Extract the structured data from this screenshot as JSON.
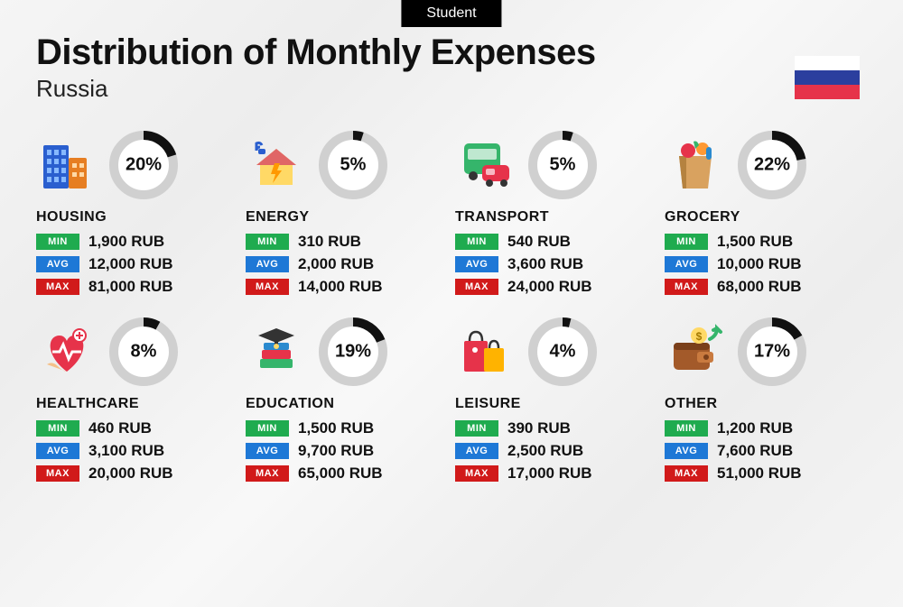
{
  "header_badge": "Student",
  "title": "Distribution of Monthly Expenses",
  "subtitle": "Russia",
  "flag_colors": [
    "#ffffff",
    "#2b3f9e",
    "#e6334a"
  ],
  "badge_colors": {
    "min": "#1fab4f",
    "avg": "#1e78d6",
    "max": "#d11a1a"
  },
  "badge_labels": {
    "min": "MIN",
    "avg": "AVG",
    "max": "MAX"
  },
  "donut": {
    "radius": 33,
    "stroke_width": 10,
    "track_color": "#d0d0d0",
    "arc_color": "#111111",
    "background_color": "#ffffff"
  },
  "currency_suffix": "RUB",
  "categories": [
    {
      "key": "housing",
      "name": "HOUSING",
      "pct": 20,
      "min": "1,900",
      "avg": "12,000",
      "max": "81,000",
      "icon": "buildings-icon"
    },
    {
      "key": "energy",
      "name": "ENERGY",
      "pct": 5,
      "min": "310",
      "avg": "2,000",
      "max": "14,000",
      "icon": "energy-house-icon"
    },
    {
      "key": "transport",
      "name": "TRANSPORT",
      "pct": 5,
      "min": "540",
      "avg": "3,600",
      "max": "24,000",
      "icon": "bus-car-icon"
    },
    {
      "key": "grocery",
      "name": "GROCERY",
      "pct": 22,
      "min": "1,500",
      "avg": "10,000",
      "max": "68,000",
      "icon": "grocery-bag-icon"
    },
    {
      "key": "healthcare",
      "name": "HEALTHCARE",
      "pct": 8,
      "min": "460",
      "avg": "3,100",
      "max": "20,000",
      "icon": "healthcare-heart-icon"
    },
    {
      "key": "education",
      "name": "EDUCATION",
      "pct": 19,
      "min": "1,500",
      "avg": "9,700",
      "max": "65,000",
      "icon": "graduation-books-icon"
    },
    {
      "key": "leisure",
      "name": "LEISURE",
      "pct": 4,
      "min": "390",
      "avg": "2,500",
      "max": "17,000",
      "icon": "shopping-bags-icon"
    },
    {
      "key": "other",
      "name": "OTHER",
      "pct": 17,
      "min": "1,200",
      "avg": "7,600",
      "max": "51,000",
      "icon": "wallet-arrow-icon"
    }
  ]
}
